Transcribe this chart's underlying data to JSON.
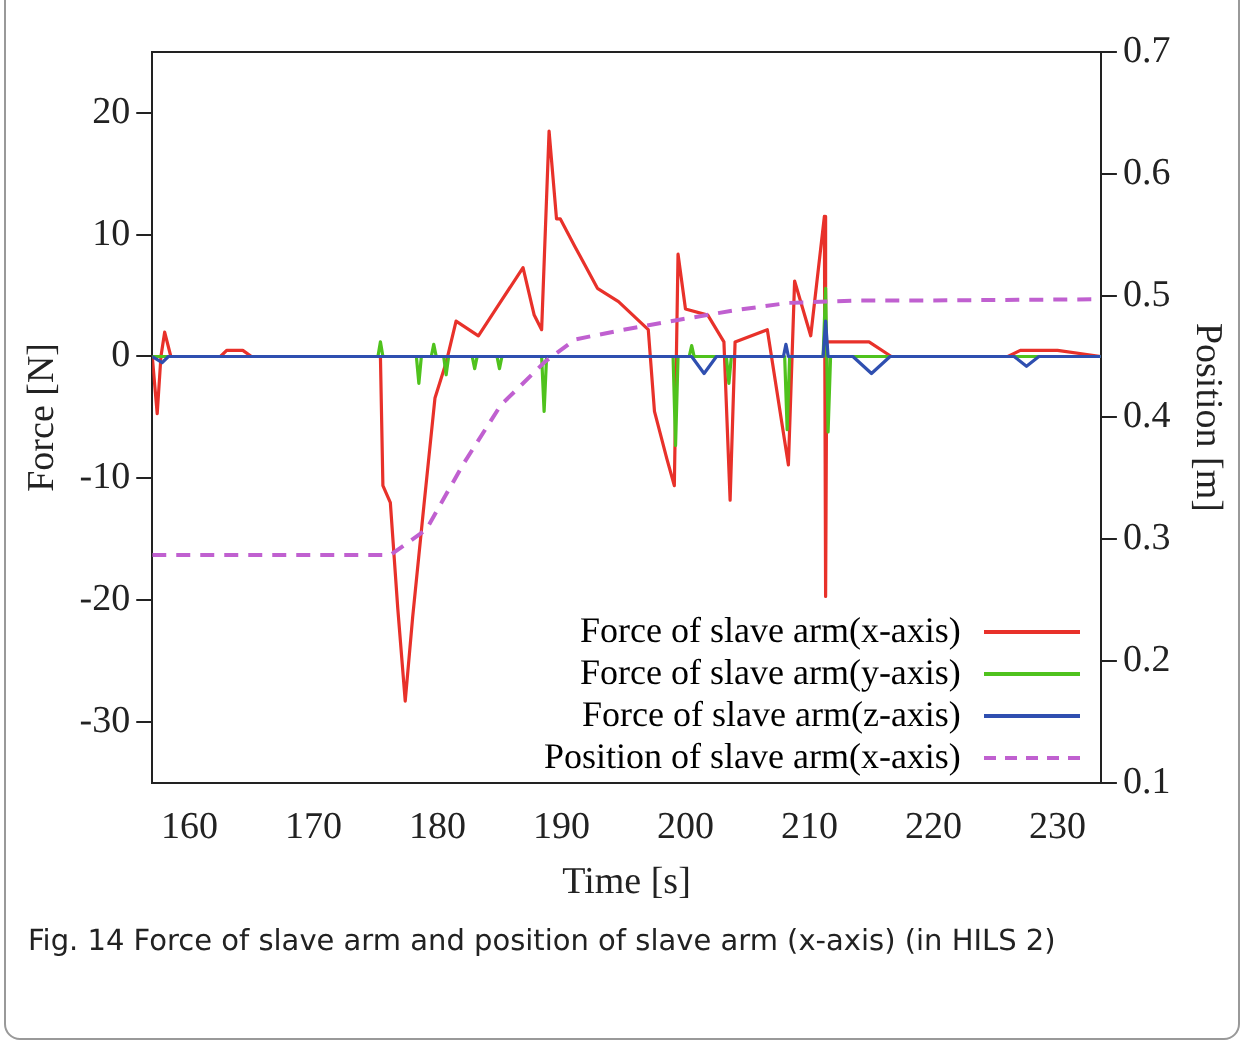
{
  "chart_data": {
    "type": "line",
    "xlabel": "Time [s]",
    "ylabel": "Force [N]",
    "y2label": "Position [m]",
    "xlim": [
      157,
      233.5
    ],
    "xticks": [
      160,
      170,
      180,
      190,
      200,
      210,
      220,
      230
    ],
    "ylim": [
      -35,
      25
    ],
    "yticks": [
      -30,
      -20,
      -10,
      0,
      10,
      20
    ],
    "y2lim": [
      0.1,
      0.7
    ],
    "y2ticks": [
      0.1,
      0.2,
      0.3,
      0.4,
      0.5,
      0.6,
      0.7
    ],
    "grid": false,
    "legend": "bottom right",
    "marker": "none",
    "annotations": [
      "Fig. 14  Force of slave arm and position of slave arm (x-axis) (in HILS 2)"
    ],
    "series": [
      {
        "name": "Force of slave arm(x-axis)",
        "color": "#e8312a",
        "x": [
          157,
          157.4,
          157.7,
          158,
          158.5,
          162.5,
          163,
          164.3,
          165,
          175.4,
          175.6,
          176.2,
          176.8,
          177.4,
          178,
          178.9,
          179.8,
          180.7,
          181.5,
          183.3,
          185.1,
          186.9,
          187.8,
          188.4,
          189,
          189.6,
          189.9,
          191.1,
          192.9,
          194.6,
          197,
          197.5,
          198.5,
          199.1,
          199.4,
          200,
          201.8,
          203.1,
          203.6,
          204,
          206.6,
          208.3,
          208.8,
          210.1,
          211.2,
          211.3,
          211.4,
          212.5,
          214.8,
          216.6,
          226,
          227,
          230,
          233.5
        ],
        "values": [
          0,
          -4.7,
          0,
          2,
          0,
          0,
          0.5,
          0.5,
          0,
          0,
          -10.6,
          -12,
          -20.7,
          -28.3,
          -21.4,
          -12.3,
          -3.4,
          -0.5,
          2.9,
          1.7,
          4.5,
          7.3,
          3.4,
          2.2,
          18.5,
          11.3,
          11.3,
          9,
          5.6,
          4.5,
          2.2,
          -4.5,
          -8.4,
          -10.6,
          8.4,
          3.9,
          3.4,
          1.2,
          -11.8,
          1.2,
          2.2,
          -8.9,
          6.2,
          1.7,
          11.5,
          -19.7,
          1.2,
          1.2,
          1.2,
          0,
          0,
          0.5,
          0.5,
          0
        ]
      },
      {
        "name": "Force of slave arm(y-axis)",
        "color": "#4fc21d",
        "x": [
          157,
          175.2,
          175.4,
          175.6,
          178.3,
          178.5,
          178.7,
          179.5,
          179.7,
          179.9,
          180.5,
          180.7,
          180.9,
          182.8,
          183,
          183.2,
          184.8,
          185,
          185.2,
          188.4,
          188.6,
          188.8,
          199,
          199.2,
          199.4,
          200.3,
          200.5,
          200.7,
          203.3,
          203.5,
          203.7,
          208,
          208.2,
          208.4,
          211.1,
          211.3,
          211.5,
          211.7,
          233.5
        ],
        "values": [
          0,
          0,
          1.2,
          0,
          0,
          -2.2,
          0,
          0,
          1,
          0,
          0,
          -1.5,
          0,
          0,
          -1,
          0,
          0,
          -1,
          0,
          0,
          -4.5,
          0,
          0,
          -7.3,
          0,
          0,
          0.9,
          0,
          0,
          -2.2,
          0,
          0,
          -6,
          0,
          0,
          5.6,
          -6.2,
          0,
          0
        ]
      },
      {
        "name": "Force of slave arm(z-axis)",
        "color": "#2f4fb0",
        "x": [
          157,
          157.8,
          158.3,
          200.5,
          201.5,
          202.5,
          207.9,
          208.1,
          208.3,
          211.1,
          211.3,
          211.5,
          213.5,
          215,
          216.5,
          226.5,
          227.5,
          228.5,
          233.5
        ],
        "values": [
          0,
          -0.5,
          0,
          0,
          -1.4,
          0,
          0,
          1,
          0,
          0,
          2.9,
          0,
          0,
          -1.4,
          0,
          0,
          -0.8,
          0,
          0
        ]
      },
      {
        "name": "Position of slave arm(x-axis)",
        "color": "#c060d0",
        "axis": "y2",
        "line_style": "dashed",
        "x": [
          157,
          176.2,
          179.1,
          182.1,
          185.1,
          188.7,
          191.1,
          195,
          199.4,
          204,
          208.3,
          214,
          220,
          233.5
        ],
        "values": [
          0.287,
          0.287,
          0.308,
          0.362,
          0.41,
          0.446,
          0.464,
          0.472,
          0.48,
          0.488,
          0.494,
          0.496,
          0.496,
          0.497
        ]
      }
    ]
  }
}
